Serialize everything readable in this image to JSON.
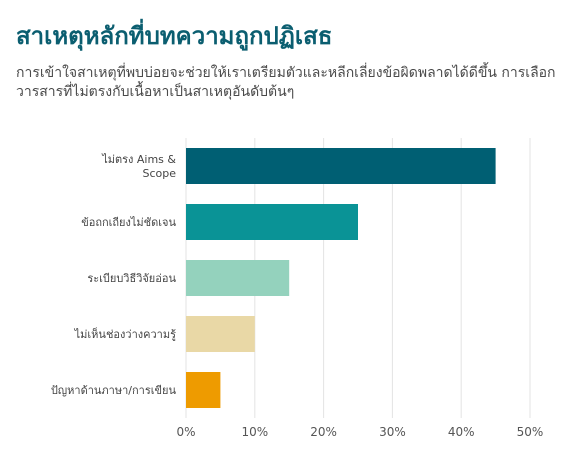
{
  "chart_data": {
    "type": "bar",
    "orientation": "horizontal",
    "title": "สาเหตุหลักที่บทความถูกปฏิเสธ",
    "subtitle": "การเข้าใจสาเหตุที่พบบ่อยจะช่วยให้เราเตรียมตัวและหลีกเลี่ยงข้อผิดพลาดได้ดีขึ้น การเลือกวารสารที่ไม่ตรงกับเนื้อหาเป็นสาเหตุอันดับต้นๆ",
    "categories": [
      "ไม่ตรง Aims & Scope",
      "ข้อถกเถียงไม่ชัดเจน",
      "ระเบียบวิธีวิจัยอ่อน",
      "ไม่เห็นช่องว่างความรู้",
      "ปัญหาด้านภาษา/การเขียน"
    ],
    "values": [
      45,
      25,
      15,
      10,
      5
    ],
    "colors": [
      "#005f73",
      "#0a9396",
      "#94d2bd",
      "#e9d8a6",
      "#ee9b00"
    ],
    "xlim": [
      0,
      50
    ],
    "x_ticks": [
      "0%",
      "10%",
      "20%",
      "30%",
      "40%",
      "50%"
    ],
    "xlabel": "",
    "ylabel": "",
    "grid": "vertical",
    "legend": "none"
  }
}
